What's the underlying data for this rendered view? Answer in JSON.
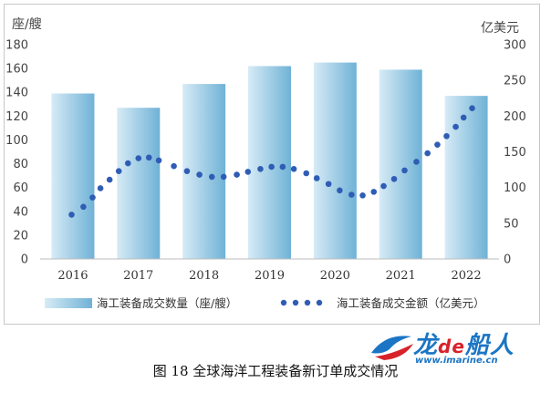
{
  "chart_data": {
    "type": "bar",
    "categories": [
      "2016",
      "2017",
      "2018",
      "2019",
      "2020",
      "2021",
      "2022"
    ],
    "left_axis_label": "座/艘",
    "right_axis_label": "亿美元",
    "ylim_left": [
      0,
      180
    ],
    "ylim_right": [
      0,
      300
    ],
    "left_ticks": [
      "0",
      "20",
      "40",
      "60",
      "80",
      "100",
      "120",
      "140",
      "160",
      "180"
    ],
    "right_ticks": [
      "0",
      "50",
      "100",
      "150",
      "200",
      "250",
      "300"
    ],
    "grid": false,
    "legend_position": "bottom",
    "series": [
      {
        "name": "海工装备成交数量（座/艘）",
        "type": "bar",
        "axis": "left",
        "color": "#9ecbe2",
        "values": [
          139,
          127,
          147,
          162,
          165,
          159,
          137
        ]
      },
      {
        "name": "海工装备成交金额（亿美元）",
        "type": "dotted-line",
        "axis": "right",
        "color": "#2f5db5",
        "x": [
          2015.98,
          2016.16,
          2016.3,
          2016.42,
          2016.56,
          2016.7,
          2016.84,
          2017.0,
          2017.16,
          2017.31,
          2017.54,
          2017.74,
          2017.93,
          2018.12,
          2018.3,
          2018.5,
          2018.67,
          2018.86,
          2019.03,
          2019.2,
          2019.37,
          2019.56,
          2019.72,
          2019.9,
          2020.07,
          2020.25,
          2020.42,
          2020.59,
          2020.74,
          2020.9,
          2021.06,
          2021.24,
          2021.41,
          2021.56,
          2021.7,
          2021.84,
          2021.96,
          2022.09
        ],
        "y": [
          62,
          73,
          86,
          99,
          111,
          123,
          134,
          141,
          142,
          138,
          130,
          123,
          118,
          115,
          115,
          118,
          122,
          126,
          129,
          129,
          126,
          120,
          113,
          105,
          96,
          90,
          89,
          94,
          102,
          112,
          124,
          136,
          148,
          160,
          172,
          185,
          198,
          211
        ]
      }
    ]
  },
  "caption": "图 18 全球海洋工程装备新订单成交情况",
  "logo": {
    "brand_parts": [
      "龙",
      "de",
      "船人"
    ],
    "url": "www.imarine.cn",
    "colors": {
      "primary": "#1b75c4",
      "accent": "#d8222a"
    }
  }
}
